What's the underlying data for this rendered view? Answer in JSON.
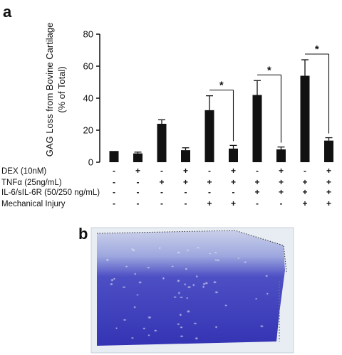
{
  "panel_a_label": "a",
  "panel_b_label": "b",
  "chart_data": {
    "type": "bar",
    "ylabel_line1": "GAG Loss from Bovine Cartilage",
    "ylabel_line2": "(% of Total)",
    "ylim": [
      0,
      80
    ],
    "yticks": [
      0,
      20,
      40,
      60,
      80
    ],
    "series": [
      {
        "values": [
          7,
          5.5,
          24,
          7.5,
          32.5,
          8.5,
          42,
          8,
          54,
          13.5
        ],
        "errors": [
          0,
          0.8,
          2.5,
          1.5,
          9,
          2,
          9,
          1.5,
          10,
          1.8
        ]
      }
    ],
    "bar_color": "#111111",
    "condition_table": [
      {
        "label": "DEX (10nM)",
        "values": [
          "-",
          "+",
          "-",
          "+",
          "-",
          "+",
          "-",
          "+",
          "-",
          "+"
        ]
      },
      {
        "label": "TNFα (25ng/mL)",
        "values": [
          "-",
          "-",
          "+",
          "+",
          "+",
          "+",
          "+",
          "+",
          "+",
          "+"
        ]
      },
      {
        "label": "IL-6/sIL-6R (50/250 ng/mL)",
        "values": [
          "-",
          "-",
          "-",
          "-",
          "-",
          "-",
          "+",
          "+",
          "+",
          "+"
        ]
      },
      {
        "label": "Mechanical Injury",
        "values": [
          "-",
          "-",
          "-",
          "-",
          "+",
          "+",
          "-",
          "-",
          "+",
          "+"
        ]
      }
    ],
    "significance": [
      {
        "pair": [
          4,
          5
        ],
        "label": "*"
      },
      {
        "pair": [
          6,
          7
        ],
        "label": "*"
      },
      {
        "pair": [
          8,
          9
        ],
        "label": "*"
      }
    ]
  },
  "panel_b": {
    "description_colors": {
      "background": "#e6ecf3",
      "tissue_light": "#aab5e2",
      "tissue_dark": "#3b3ab8"
    }
  }
}
